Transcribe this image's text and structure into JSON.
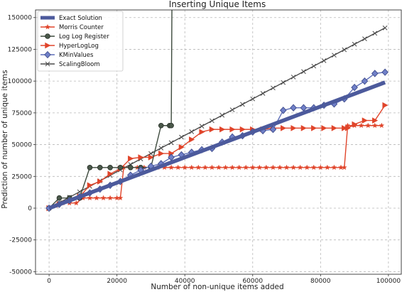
{
  "chart_data": {
    "type": "line",
    "title": "Inserting Unique Items",
    "xlabel": "Number of non-unique items added",
    "ylabel": "Prediction of number of unique items",
    "xlim": [
      -4000,
      104000
    ],
    "ylim": [
      -52000,
      156000
    ],
    "xticks": [
      0,
      20000,
      40000,
      60000,
      80000,
      100000
    ],
    "yticks": [
      -50000,
      -25000,
      0,
      25000,
      50000,
      75000,
      100000,
      125000,
      150000
    ],
    "grid": true,
    "legend_position": "top-left",
    "series": [
      {
        "name": "Exact Solution",
        "color": "#4c5a9c",
        "marker": "none",
        "x": [
          0,
          10000,
          20000,
          30000,
          40000,
          50000,
          60000,
          70000,
          80000,
          90000,
          99000
        ],
        "y": [
          0,
          10000,
          20000,
          30000,
          40000,
          50000,
          60000,
          70000,
          80000,
          90000,
          99000
        ]
      },
      {
        "name": "Morris Counter",
        "color": "#e0442a",
        "marker": "star",
        "x": [
          0,
          2000,
          4000,
          6000,
          8000,
          10000,
          12000,
          14000,
          16000,
          18000,
          20000,
          21000,
          22000,
          24000,
          26000,
          28000,
          30000,
          32000,
          34000,
          36000,
          38000,
          40000,
          42000,
          44000,
          46000,
          48000,
          50000,
          52000,
          54000,
          56000,
          58000,
          60000,
          62000,
          64000,
          66000,
          68000,
          70000,
          72000,
          74000,
          76000,
          78000,
          80000,
          82000,
          84000,
          86000,
          87000,
          88000,
          90000,
          92000,
          94000,
          96000,
          98000
        ],
        "y": [
          0,
          2000,
          4000,
          4000,
          4000,
          8000,
          8000,
          8000,
          8000,
          8000,
          8000,
          8000,
          32000,
          32000,
          32000,
          32000,
          32000,
          32000,
          32000,
          32000,
          32000,
          32000,
          32000,
          32000,
          32000,
          32000,
          32000,
          32000,
          32000,
          32000,
          32000,
          32000,
          32000,
          32000,
          32000,
          32000,
          32000,
          32000,
          32000,
          32000,
          32000,
          32000,
          32000,
          32000,
          32000,
          32000,
          65000,
          65000,
          65000,
          65000,
          65000,
          65000
        ]
      },
      {
        "name": "Log Log Register",
        "color": "#3d4a3d",
        "marker": "circle",
        "x": [
          0,
          3000,
          6000,
          9000,
          12000,
          15000,
          18000,
          21000,
          24000,
          27000,
          30000,
          33000,
          35500,
          36000,
          36200
        ],
        "y": [
          0,
          8000,
          8000,
          8000,
          32000,
          32000,
          32000,
          32000,
          32000,
          32000,
          32000,
          65000,
          65000,
          65000,
          160000
        ]
      },
      {
        "name": "HyperLogLog",
        "color": "#e0442a",
        "marker": "triangle-right",
        "x": [
          0,
          3000,
          6000,
          9000,
          12000,
          15000,
          18000,
          21000,
          24000,
          27000,
          30000,
          33000,
          36000,
          39000,
          42000,
          45000,
          48000,
          51000,
          54000,
          57000,
          60000,
          63000,
          66000,
          69000,
          72000,
          75000,
          78000,
          81000,
          84000,
          87000,
          88000,
          90000,
          93000,
          96000,
          99000
        ],
        "y": [
          0,
          3000,
          6000,
          9000,
          18000,
          21000,
          27000,
          31000,
          39000,
          40000,
          40000,
          43000,
          43000,
          48000,
          54000,
          60000,
          62000,
          62000,
          62000,
          62000,
          62000,
          62000,
          63000,
          63000,
          63000,
          63000,
          63000,
          63000,
          63000,
          63000,
          63000,
          66000,
          69000,
          69000,
          81000
        ]
      },
      {
        "name": "KMinValues",
        "color": "#5f6fb8",
        "marker": "diamond",
        "x": [
          0,
          3000,
          6000,
          9000,
          12000,
          15000,
          18000,
          21000,
          24000,
          27000,
          30000,
          33000,
          36000,
          39000,
          42000,
          45000,
          48000,
          51000,
          54000,
          57000,
          60000,
          63000,
          66000,
          69000,
          72000,
          75000,
          78000,
          81000,
          84000,
          87000,
          90000,
          93000,
          96000,
          99000
        ],
        "y": [
          0,
          3000,
          6000,
          9000,
          12000,
          15000,
          18000,
          21000,
          26000,
          30000,
          33000,
          35000,
          40000,
          42000,
          44000,
          46000,
          47000,
          52000,
          56000,
          57000,
          60000,
          61000,
          62000,
          77000,
          79000,
          79000,
          79000,
          81000,
          82000,
          86000,
          95000,
          100000,
          106000,
          107000
        ]
      },
      {
        "name": "ScalingBloom",
        "color": "#4a4a4a",
        "marker": "x",
        "x": [
          0,
          3000,
          6000,
          9000,
          12000,
          15000,
          18000,
          21000,
          24000,
          27000,
          30000,
          33000,
          36000,
          39000,
          42000,
          45000,
          48000,
          51000,
          54000,
          57000,
          60000,
          63000,
          66000,
          69000,
          72000,
          75000,
          78000,
          81000,
          84000,
          87000,
          90000,
          93000,
          96000,
          99000
        ],
        "y": [
          0,
          4300,
          8600,
          12900,
          17200,
          21500,
          25800,
          30100,
          34400,
          38700,
          43000,
          47300,
          51600,
          55900,
          60200,
          64500,
          68800,
          73100,
          77400,
          81700,
          86000,
          90300,
          94600,
          98900,
          103200,
          107500,
          111800,
          116100,
          120400,
          124700,
          129000,
          133300,
          137600,
          141900
        ]
      }
    ]
  }
}
